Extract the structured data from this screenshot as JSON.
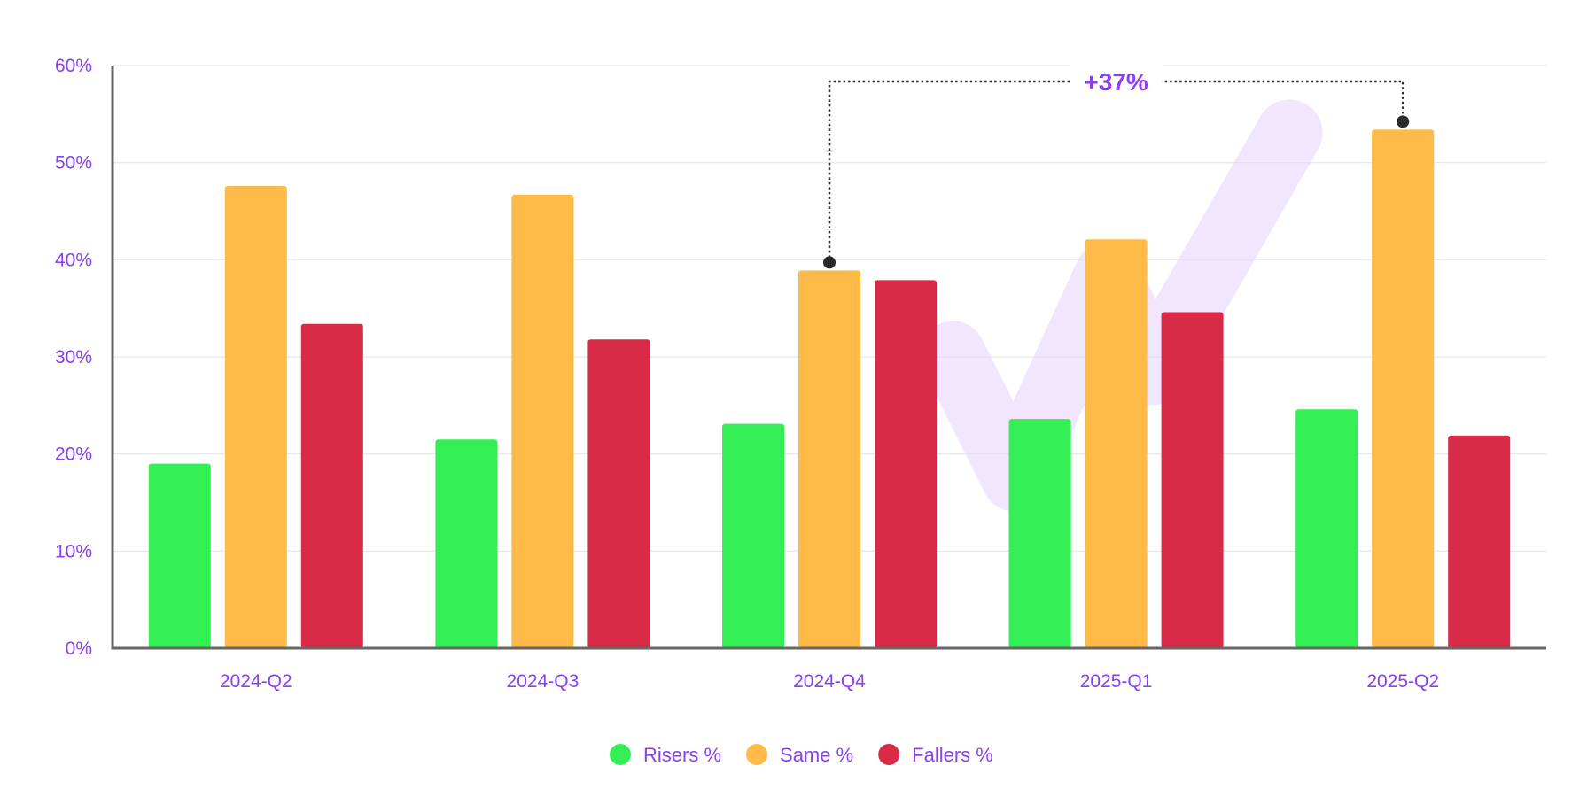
{
  "chart_data": {
    "type": "bar",
    "title": "",
    "xlabel": "",
    "ylabel": "",
    "categories": [
      "2024-Q2",
      "2024-Q3",
      "2024-Q4",
      "2025-Q1",
      "2025-Q2"
    ],
    "series": [
      {
        "name": "Risers %",
        "color": "#33ee55",
        "values": [
          19.0,
          21.5,
          23.1,
          23.6,
          24.6
        ]
      },
      {
        "name": "Same %",
        "color": "#ffba47",
        "values": [
          47.6,
          46.7,
          38.9,
          42.1,
          53.4
        ]
      },
      {
        "name": "Fallers %",
        "color": "#d72b48",
        "values": [
          33.4,
          31.8,
          37.9,
          34.6,
          21.9
        ]
      }
    ],
    "ylim": [
      0,
      60
    ],
    "yticks": [
      0,
      10,
      20,
      30,
      40,
      50,
      60
    ],
    "ytick_labels": [
      "0%",
      "10%",
      "20%",
      "30%",
      "40%",
      "50%",
      "60%"
    ],
    "grid": true,
    "legend_position": "bottom-center",
    "annotation": {
      "text": "+37%",
      "from_category": "2024-Q4",
      "to_category": "2025-Q2",
      "series": "Same %"
    },
    "colors": {
      "text": "#8a3ff0",
      "axis": "#666666",
      "grid": "#e6e6e6",
      "marker": "#2b2b2b",
      "watermark": "#e7d6fb"
    }
  }
}
